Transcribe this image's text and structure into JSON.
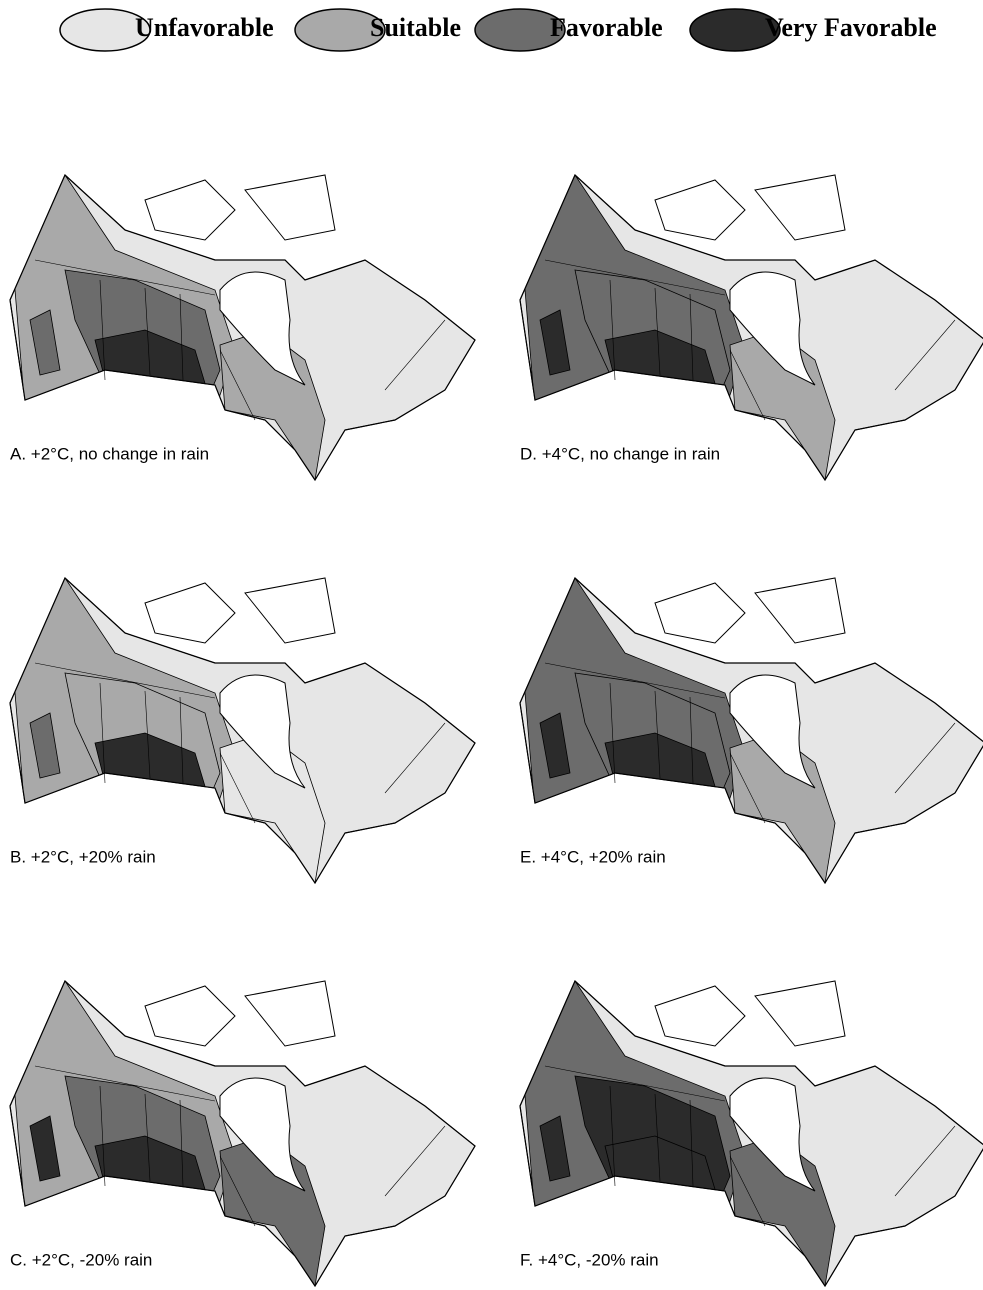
{
  "legend": [
    "Unfavorable",
    "Suitable",
    "Favorable",
    "Very Favorable"
  ],
  "panels": [
    {
      "caption": "A.  +2°C, no change in rain"
    },
    {
      "caption": "D.  +4°C, no change in rain"
    },
    {
      "caption": "B.  +2°C, +20% rain"
    },
    {
      "caption": "E.  +4°C, +20% rain"
    },
    {
      "caption": "C.  +2°C, -20% rain"
    },
    {
      "caption": "F.  +4°C, -20% rain"
    }
  ]
}
